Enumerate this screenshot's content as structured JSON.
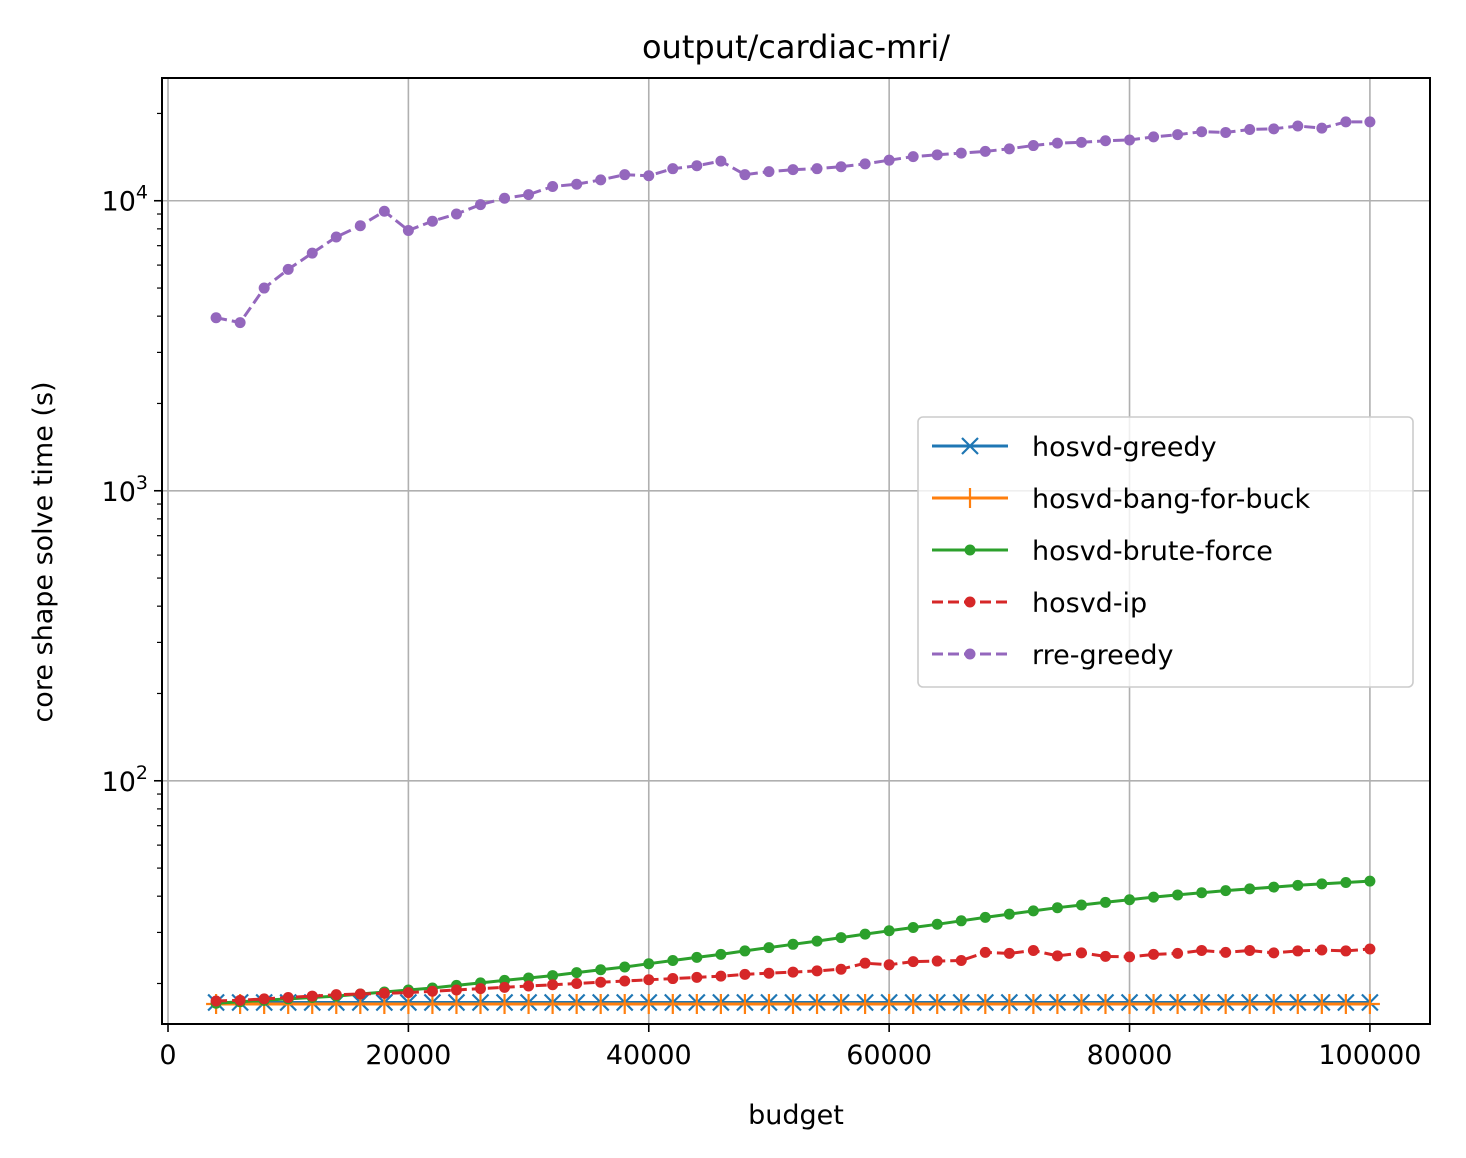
{
  "chart_data": {
    "type": "line",
    "title": "output/cardiac-mri/",
    "xlabel": "budget",
    "ylabel": "core shape solve time (s)",
    "xscale": "linear",
    "yscale": "log",
    "xlim": [
      -500,
      105000
    ],
    "ylim": [
      14.5,
      26500
    ],
    "x_ticks": [
      0,
      20000,
      40000,
      60000,
      80000,
      100000
    ],
    "x_tick_labels": [
      "0",
      "20000",
      "40000",
      "60000",
      "80000",
      "100000"
    ],
    "y_major_ticks": [
      100,
      1000,
      10000
    ],
    "y_tick_labels": [
      {
        "base": "10",
        "exp": "2"
      },
      {
        "base": "10",
        "exp": "3"
      },
      {
        "base": "10",
        "exp": "4"
      }
    ],
    "grid": true,
    "legend_position": "center-right",
    "x": [
      4000,
      6000,
      8000,
      10000,
      12000,
      14000,
      16000,
      18000,
      20000,
      22000,
      24000,
      26000,
      28000,
      30000,
      32000,
      34000,
      36000,
      38000,
      40000,
      42000,
      44000,
      46000,
      48000,
      50000,
      52000,
      54000,
      56000,
      58000,
      60000,
      62000,
      64000,
      66000,
      68000,
      70000,
      72000,
      74000,
      76000,
      78000,
      80000,
      82000,
      84000,
      86000,
      88000,
      90000,
      92000,
      94000,
      96000,
      98000,
      100000
    ],
    "series": [
      {
        "name": "hosvd-greedy",
        "color": "#1f77b4",
        "marker": "x",
        "linestyle": "solid",
        "values": [
          17.2,
          17.2,
          17.2,
          17.2,
          17.2,
          17.2,
          17.2,
          17.2,
          17.2,
          17.2,
          17.2,
          17.2,
          17.2,
          17.2,
          17.2,
          17.2,
          17.2,
          17.2,
          17.2,
          17.2,
          17.2,
          17.2,
          17.2,
          17.2,
          17.2,
          17.2,
          17.2,
          17.2,
          17.2,
          17.2,
          17.2,
          17.2,
          17.2,
          17.2,
          17.2,
          17.2,
          17.2,
          17.2,
          17.2,
          17.2,
          17.2,
          17.2,
          17.2,
          17.2,
          17.2,
          17.2,
          17.2,
          17.2,
          17.2
        ]
      },
      {
        "name": "hosvd-bang-for-buck",
        "color": "#ff7f0e",
        "marker": "+",
        "linestyle": "solid",
        "values": [
          17.0,
          17.0,
          17.0,
          17.0,
          17.0,
          17.0,
          17.0,
          17.0,
          17.0,
          17.0,
          17.0,
          17.0,
          17.0,
          17.0,
          17.0,
          17.0,
          17.0,
          17.0,
          17.0,
          17.0,
          17.0,
          17.0,
          17.0,
          17.0,
          17.0,
          17.0,
          17.0,
          17.0,
          17.0,
          17.0,
          17.0,
          17.0,
          17.0,
          17.0,
          17.0,
          17.0,
          17.0,
          17.0,
          17.0,
          17.0,
          17.0,
          17.0,
          17.0,
          17.0,
          17.0,
          17.0,
          17.0,
          17.0,
          17.0
        ]
      },
      {
        "name": "hosvd-brute-force",
        "color": "#2ca02c",
        "marker": "dot",
        "linestyle": "solid",
        "values": [
          17.1,
          17.3,
          17.5,
          17.7,
          17.9,
          18.1,
          18.4,
          18.7,
          19.0,
          19.3,
          19.7,
          20.1,
          20.5,
          20.9,
          21.3,
          21.8,
          22.3,
          22.8,
          23.4,
          24.0,
          24.6,
          25.2,
          25.9,
          26.6,
          27.3,
          28.0,
          28.8,
          29.6,
          30.4,
          31.2,
          32.0,
          32.9,
          33.8,
          34.7,
          35.6,
          36.5,
          37.3,
          38.1,
          38.9,
          39.7,
          40.4,
          41.1,
          41.8,
          42.4,
          43.0,
          43.6,
          44.1,
          44.6,
          45.1
        ]
      },
      {
        "name": "hosvd-ip",
        "color": "#d62728",
        "marker": "dot",
        "linestyle": "dashed",
        "values": [
          17.4,
          17.5,
          17.7,
          17.9,
          18.1,
          18.3,
          18.4,
          18.5,
          18.6,
          18.8,
          19.0,
          19.2,
          19.4,
          19.6,
          19.8,
          20.0,
          20.2,
          20.4,
          20.6,
          20.8,
          21.0,
          21.2,
          21.5,
          21.7,
          21.9,
          22.1,
          22.4,
          23.5,
          23.2,
          23.8,
          23.9,
          24.0,
          25.6,
          25.4,
          26.0,
          24.9,
          25.5,
          24.8,
          24.7,
          25.2,
          25.4,
          26.0,
          25.6,
          26.0,
          25.5,
          25.9,
          26.1,
          25.9,
          26.3
        ]
      },
      {
        "name": "rre-greedy",
        "color": "#9467bd",
        "marker": "dot",
        "linestyle": "dashed",
        "values": [
          3950,
          3800,
          5000,
          5800,
          6600,
          7500,
          8200,
          9200,
          7900,
          8500,
          9000,
          9700,
          10200,
          10500,
          11200,
          11400,
          11800,
          12300,
          12200,
          12900,
          13200,
          13700,
          12300,
          12600,
          12800,
          12900,
          13100,
          13400,
          13800,
          14200,
          14400,
          14600,
          14800,
          15100,
          15500,
          15800,
          15900,
          16100,
          16200,
          16600,
          16900,
          17300,
          17200,
          17600,
          17700,
          18100,
          17800,
          18700,
          18700
        ]
      }
    ]
  }
}
